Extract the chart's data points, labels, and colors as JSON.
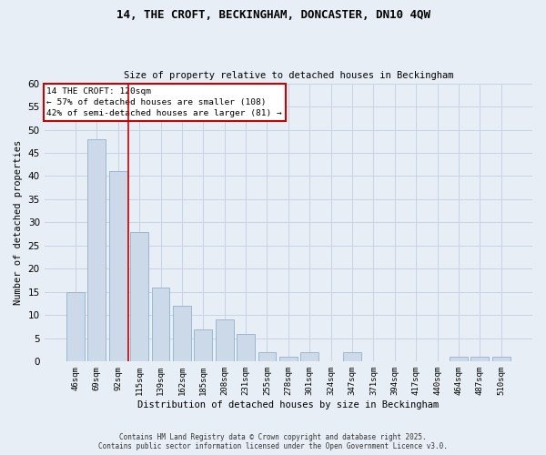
{
  "title1": "14, THE CROFT, BECKINGHAM, DONCASTER, DN10 4QW",
  "title2": "Size of property relative to detached houses in Beckingham",
  "xlabel": "Distribution of detached houses by size in Beckingham",
  "ylabel": "Number of detached properties",
  "bar_labels": [
    "46sqm",
    "69sqm",
    "92sqm",
    "115sqm",
    "139sqm",
    "162sqm",
    "185sqm",
    "208sqm",
    "231sqm",
    "255sqm",
    "278sqm",
    "301sqm",
    "324sqm",
    "347sqm",
    "371sqm",
    "394sqm",
    "417sqm",
    "440sqm",
    "464sqm",
    "487sqm",
    "510sqm"
  ],
  "bar_values": [
    15,
    48,
    41,
    28,
    16,
    12,
    7,
    9,
    6,
    2,
    1,
    2,
    0,
    2,
    0,
    0,
    0,
    0,
    1,
    1,
    1
  ],
  "bar_color": "#ccd9e8",
  "bar_edge_color": "#9ab8d0",
  "grid_color": "#c8d4e4",
  "background_color": "#e8eef6",
  "vline_color": "#cc0000",
  "annotation_title": "14 THE CROFT: 120sqm",
  "annotation_line1": "← 57% of detached houses are smaller (108)",
  "annotation_line2": "42% of semi-detached houses are larger (81) →",
  "annotation_box_color": "#ffffff",
  "annotation_box_edge": "#cc0000",
  "ylim": [
    0,
    60
  ],
  "yticks": [
    0,
    5,
    10,
    15,
    20,
    25,
    30,
    35,
    40,
    45,
    50,
    55,
    60
  ],
  "footer1": "Contains HM Land Registry data © Crown copyright and database right 2025.",
  "footer2": "Contains public sector information licensed under the Open Government Licence v3.0."
}
